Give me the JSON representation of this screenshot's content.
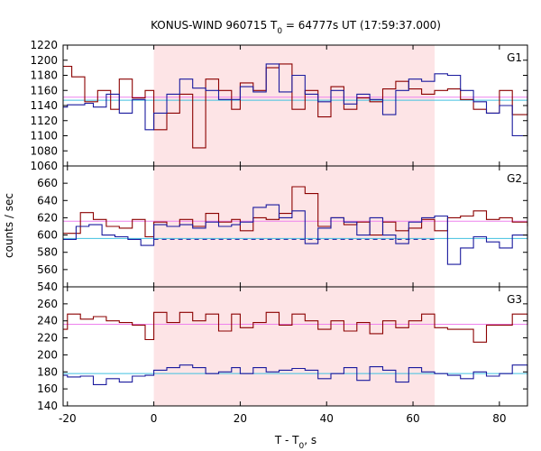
{
  "chart_data": {
    "type": "line",
    "title_main": "KONUS-WIND 960715 T",
    "title_sub": "0",
    "title_rest": " = 64777s UT (17:59:37.000)",
    "xlabel_main": "T - T",
    "xlabel_sub": "0",
    "xlabel_rest": ", s",
    "ylabel": "counts / sec",
    "xlim": [
      -21,
      86.5
    ],
    "x_ticks": [
      -20,
      0,
      20,
      40,
      60,
      80
    ],
    "highlight_interval": [
      0,
      65
    ],
    "colors": {
      "red": "#8b0000",
      "blue": "#1a1a9e",
      "pink": "#ee82ee",
      "cyan": "#40c0e0",
      "shade": "#fde4e6"
    },
    "panels": [
      {
        "label": "G1",
        "ylim": [
          1060,
          1220
        ],
        "y_ticks": [
          1060,
          1080,
          1100,
          1120,
          1140,
          1160,
          1180,
          1200,
          1220
        ],
        "bg_pink": 1151,
        "bg_cyan": 1147,
        "red": {
          "name": "",
          "x": [
            -21,
            -19,
            -16,
            -13,
            -10,
            -8,
            -5,
            -2,
            0,
            3,
            6,
            9,
            12,
            15,
            18,
            20,
            23,
            26,
            29,
            32,
            35,
            38,
            41,
            44,
            47,
            50,
            53,
            56,
            59,
            62,
            65,
            68,
            71,
            74,
            77,
            80,
            83,
            86.5
          ],
          "y": [
            1192,
            1178,
            1145,
            1160,
            1135,
            1175,
            1150,
            1160,
            1108,
            1130,
            1155,
            1084,
            1175,
            1160,
            1135,
            1170,
            1160,
            1190,
            1195,
            1135,
            1160,
            1125,
            1165,
            1135,
            1150,
            1145,
            1162,
            1172,
            1162,
            1155,
            1160,
            1162,
            1148,
            1135,
            1130,
            1160,
            1128,
            1160
          ]
        },
        "blue": {
          "name": "",
          "x": [
            -21,
            -20,
            -16,
            -14,
            -11,
            -8,
            -5,
            -2,
            0,
            3,
            6,
            9,
            12,
            15,
            18,
            20,
            23,
            26,
            29,
            32,
            35,
            38,
            41,
            44,
            47,
            50,
            53,
            56,
            59,
            62,
            65,
            68,
            71,
            74,
            77,
            80,
            83,
            86.5
          ],
          "y": [
            1138,
            1141,
            1143,
            1138,
            1155,
            1130,
            1148,
            1108,
            1130,
            1155,
            1175,
            1163,
            1160,
            1148,
            1148,
            1165,
            1158,
            1195,
            1158,
            1180,
            1155,
            1145,
            1160,
            1142,
            1155,
            1148,
            1128,
            1160,
            1175,
            1172,
            1182,
            1180,
            1160,
            1145,
            1130,
            1140,
            1100,
            1180
          ]
        }
      },
      {
        "label": "G2",
        "ylim": [
          540,
          680
        ],
        "y_ticks": [
          540,
          560,
          580,
          600,
          620,
          640,
          660
        ],
        "bg_pink": 616,
        "bg_cyan": 596,
        "dashed": {
          "x": [
            0,
            65
          ],
          "y": 595
        },
        "red": {
          "name": "",
          "x": [
            -21,
            -17,
            -14,
            -11,
            -8,
            -5,
            -2,
            0,
            3,
            6,
            9,
            12,
            15,
            18,
            20,
            23,
            26,
            29,
            32,
            35,
            38,
            41,
            44,
            47,
            50,
            53,
            56,
            59,
            62,
            65,
            68,
            71,
            74,
            77,
            80,
            83,
            86.5
          ],
          "y": [
            602,
            626,
            618,
            610,
            608,
            618,
            598,
            615,
            610,
            618,
            610,
            625,
            615,
            618,
            605,
            620,
            618,
            625,
            656,
            648,
            610,
            620,
            612,
            615,
            600,
            615,
            605,
            608,
            618,
            605,
            620,
            622,
            628,
            618,
            620,
            615,
            610
          ]
        },
        "blue": {
          "name": "",
          "x": [
            -21,
            -18,
            -15,
            -12,
            -9,
            -6,
            -3,
            0,
            3,
            6,
            9,
            12,
            15,
            18,
            20,
            23,
            26,
            29,
            32,
            35,
            38,
            41,
            44,
            47,
            50,
            53,
            56,
            59,
            62,
            65,
            68,
            71,
            74,
            77,
            80,
            83,
            86.5
          ],
          "y": [
            595,
            610,
            612,
            600,
            598,
            595,
            588,
            612,
            610,
            612,
            608,
            615,
            610,
            612,
            615,
            632,
            635,
            620,
            628,
            590,
            608,
            620,
            615,
            600,
            620,
            600,
            590,
            615,
            620,
            622,
            566,
            585,
            598,
            592,
            585,
            600,
            595
          ]
        }
      },
      {
        "label": "G3",
        "ylim": [
          140,
          280
        ],
        "y_ticks": [
          140,
          160,
          180,
          200,
          220,
          240,
          260
        ],
        "bg_pink": 236,
        "bg_cyan": 178,
        "red": {
          "name": "",
          "x": [
            -21,
            -20,
            -17,
            -14,
            -11,
            -8,
            -5,
            -2,
            0,
            3,
            6,
            9,
            12,
            15,
            18,
            20,
            23,
            26,
            29,
            32,
            35,
            38,
            41,
            44,
            47,
            50,
            53,
            56,
            59,
            62,
            65,
            68,
            71,
            74,
            77,
            80,
            83,
            86.5
          ],
          "y": [
            230,
            248,
            242,
            245,
            240,
            238,
            235,
            218,
            250,
            238,
            250,
            240,
            248,
            228,
            248,
            232,
            238,
            250,
            235,
            248,
            240,
            230,
            240,
            228,
            238,
            225,
            240,
            232,
            240,
            248,
            232,
            230,
            230,
            215,
            235,
            235,
            248,
            235
          ]
        },
        "blue": {
          "name": "",
          "x": [
            -21,
            -20,
            -17,
            -14,
            -11,
            -8,
            -5,
            -2,
            0,
            3,
            6,
            9,
            12,
            15,
            18,
            20,
            23,
            26,
            29,
            32,
            35,
            38,
            41,
            44,
            47,
            50,
            53,
            56,
            59,
            62,
            65,
            68,
            71,
            74,
            77,
            80,
            83,
            86.5
          ],
          "y": [
            176,
            174,
            175,
            165,
            172,
            168,
            175,
            176,
            182,
            185,
            188,
            185,
            178,
            180,
            185,
            178,
            185,
            180,
            182,
            184,
            182,
            172,
            178,
            185,
            170,
            186,
            182,
            168,
            185,
            180,
            178,
            176,
            172,
            180,
            175,
            178,
            188,
            162
          ]
        }
      }
    ]
  }
}
